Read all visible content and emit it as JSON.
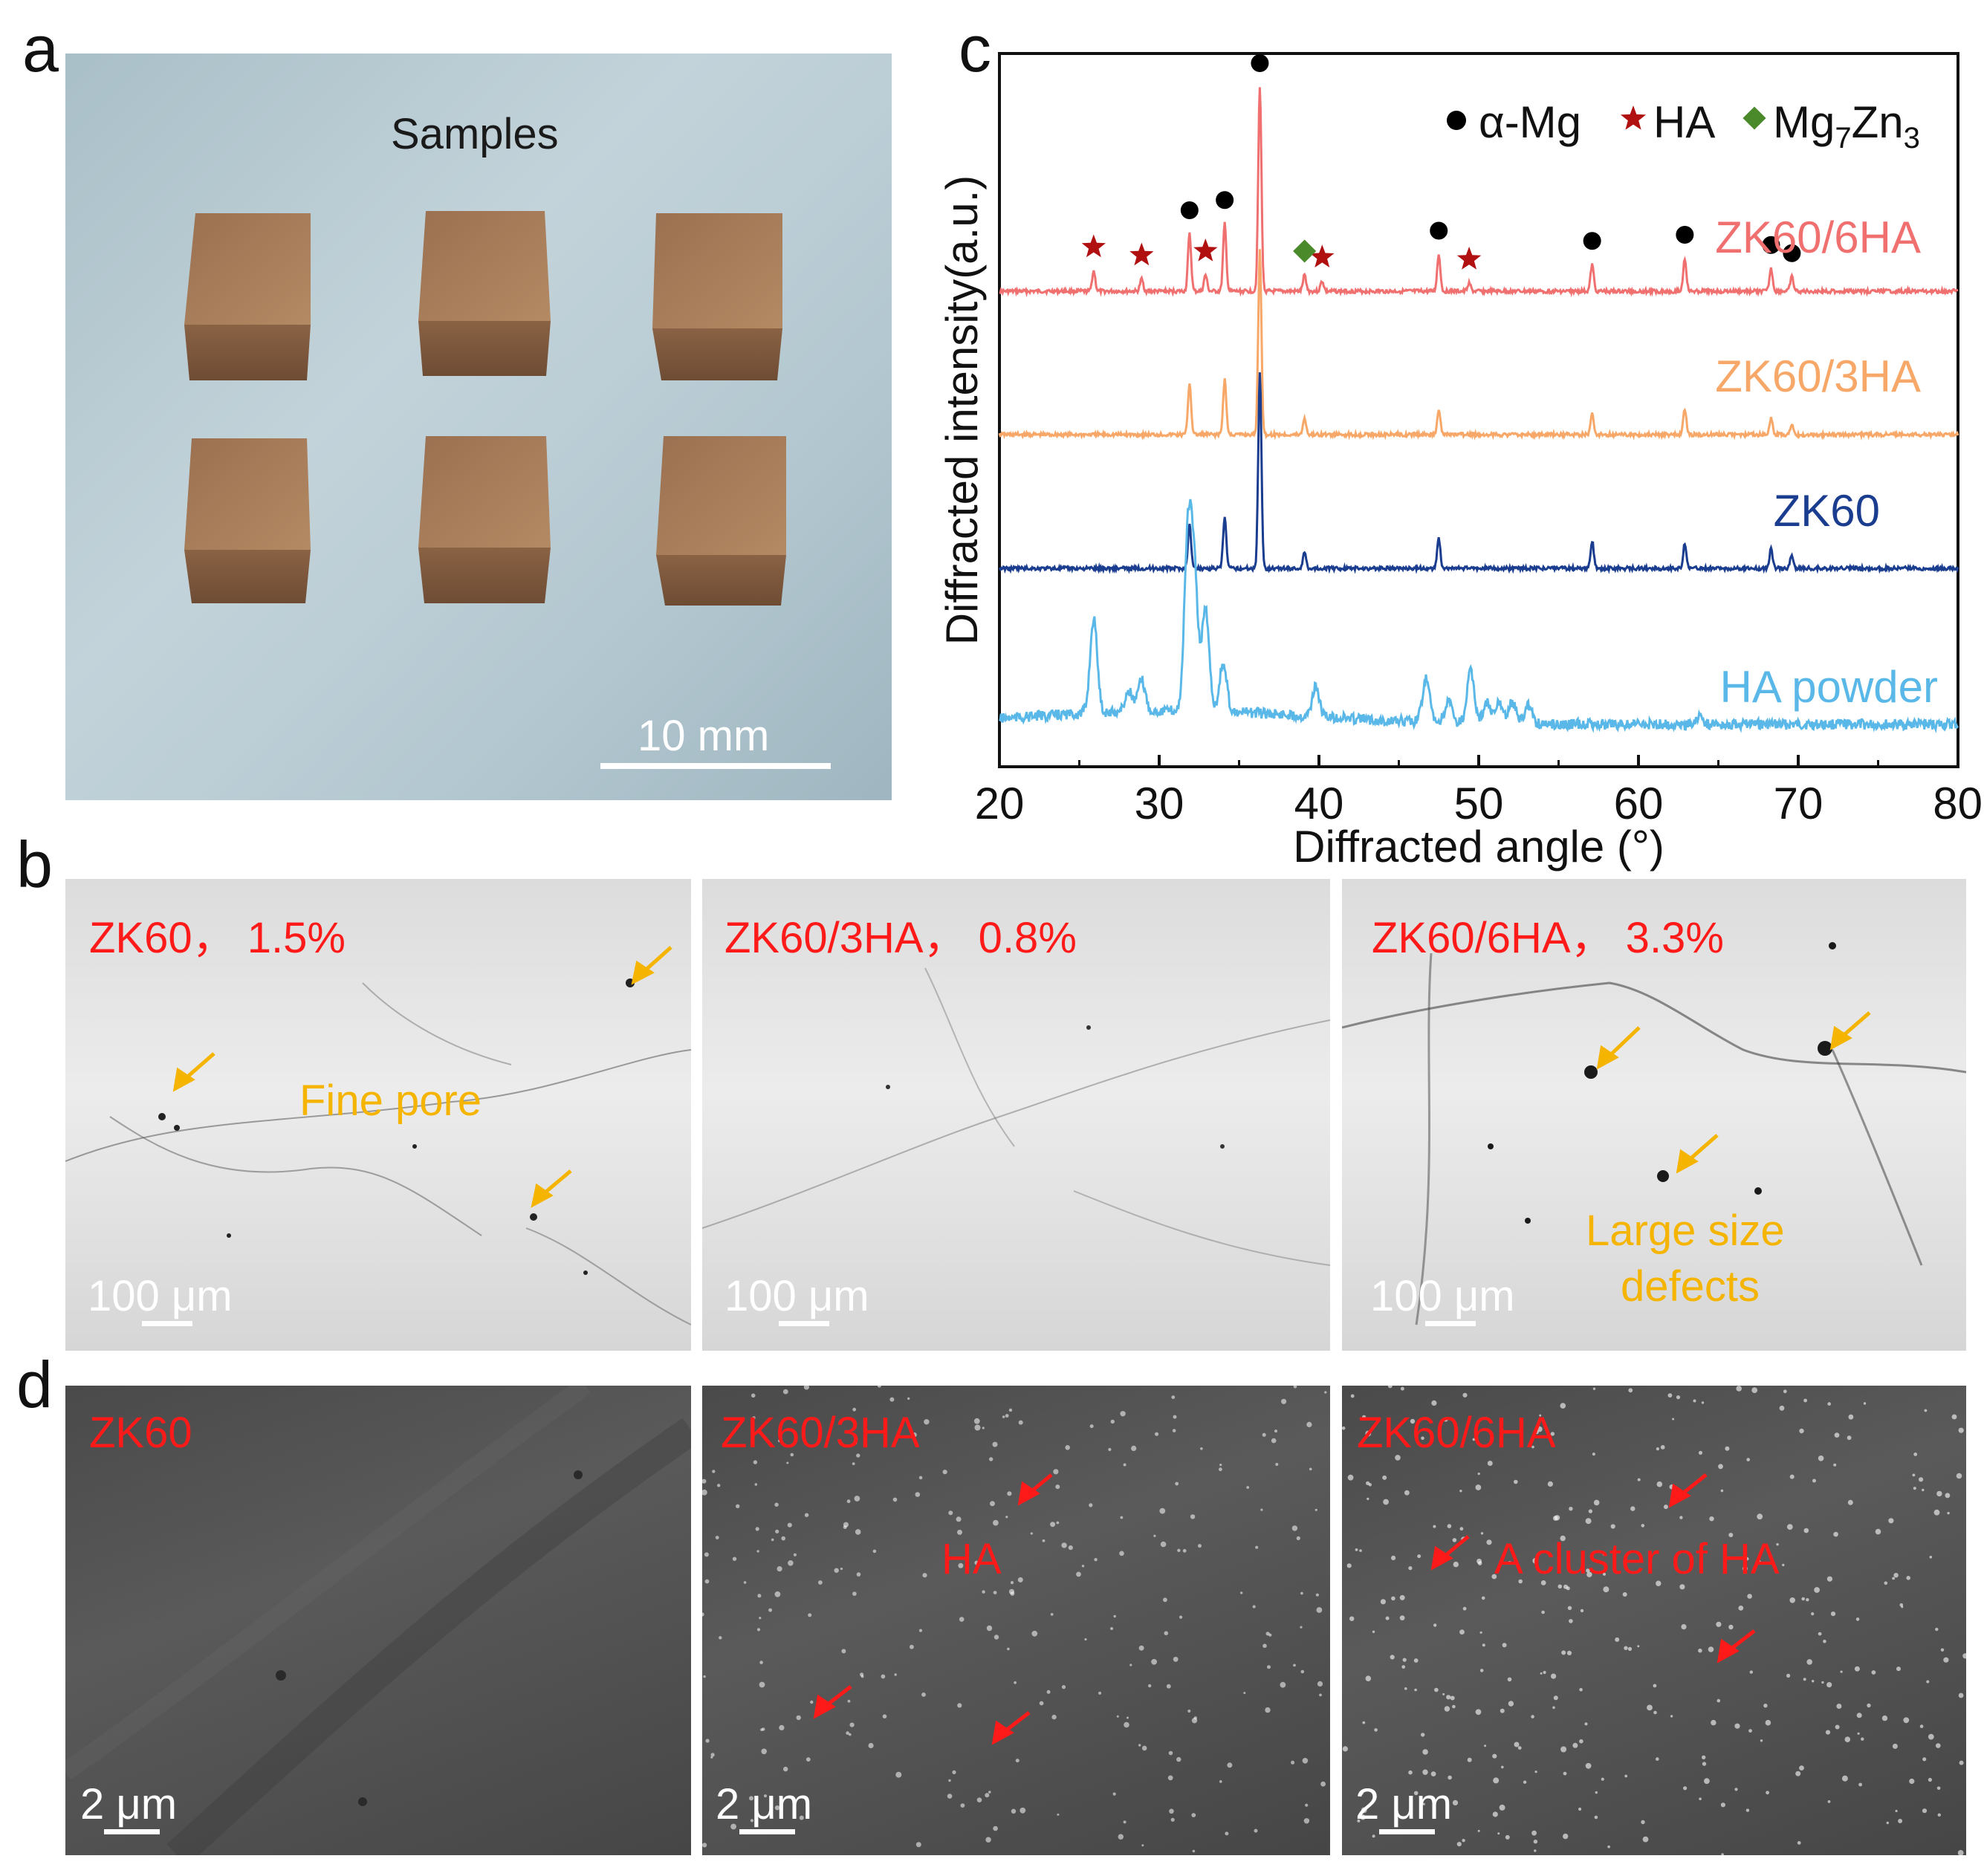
{
  "panel_labels": {
    "a": "a",
    "b": "b",
    "c": "c",
    "d": "d"
  },
  "panel_a": {
    "title": "Samples",
    "scale_bar": "10 mm"
  },
  "panel_b": {
    "images": [
      {
        "label": "ZK60，  1.5%",
        "scale": "100 μm",
        "annotation": "Fine pore"
      },
      {
        "label": "ZK60/3HA，  0.8%",
        "scale": "100 μm"
      },
      {
        "label": "ZK60/6HA，  3.3%",
        "scale": "100 μm",
        "annotation_line1": "Large size",
        "annotation_line2": "defects"
      }
    ]
  },
  "panel_d": {
    "images": [
      {
        "label": "ZK60",
        "scale": "2 μm"
      },
      {
        "label": "ZK60/3HA",
        "scale": "2 μm",
        "annotation": "HA"
      },
      {
        "label": "ZK60/6HA",
        "scale": "2 μm",
        "annotation": "A cluster of HA"
      }
    ]
  },
  "chart_data": {
    "type": "line",
    "xlabel": "Diffracted angle (°)",
    "ylabel": "Diffracted intensity(a.u.)",
    "xlim": [
      20,
      80
    ],
    "xticks": [
      "20",
      "30",
      "40",
      "50",
      "60",
      "70",
      "80"
    ],
    "legend": [
      {
        "symbol": "circle",
        "label": "α-Mg",
        "color": "#000000"
      },
      {
        "symbol": "star",
        "label": "HA",
        "color": "#b01010"
      },
      {
        "symbol": "diamond",
        "label": "Mg7Zn3",
        "color": "#4a8a2a"
      }
    ],
    "series": [
      {
        "name": "ZK60/6HA",
        "color": "#f07070",
        "peaks": [
          [
            25.9,
            0.1
          ],
          [
            28.9,
            0.06
          ],
          [
            31.9,
            0.28
          ],
          [
            32.9,
            0.08
          ],
          [
            34.1,
            0.33
          ],
          [
            36.3,
            1.0
          ],
          [
            39.1,
            0.08
          ],
          [
            40.2,
            0.05
          ],
          [
            47.5,
            0.18
          ],
          [
            49.4,
            0.04
          ],
          [
            57.1,
            0.13
          ],
          [
            62.9,
            0.16
          ],
          [
            68.3,
            0.11
          ],
          [
            69.6,
            0.07
          ]
        ]
      },
      {
        "name": "ZK60/3HA",
        "color": "#f7a868",
        "peaks": [
          [
            31.9,
            0.28
          ],
          [
            34.1,
            0.3
          ],
          [
            36.3,
            1.0
          ],
          [
            39.1,
            0.09
          ],
          [
            47.5,
            0.14
          ],
          [
            57.1,
            0.11
          ],
          [
            62.9,
            0.14
          ],
          [
            68.3,
            0.09
          ],
          [
            69.6,
            0.06
          ]
        ]
      },
      {
        "name": "ZK60",
        "color": "#1a3d8f",
        "peaks": [
          [
            31.9,
            0.22
          ],
          [
            34.1,
            0.26
          ],
          [
            36.3,
            1.0
          ],
          [
            39.1,
            0.08
          ],
          [
            47.5,
            0.15
          ],
          [
            57.1,
            0.14
          ],
          [
            62.9,
            0.13
          ],
          [
            68.3,
            0.1
          ],
          [
            69.6,
            0.07
          ]
        ]
      },
      {
        "name": "HA powder",
        "color": "#5ab8e8",
        "peaks": [
          [
            25.9,
            0.55
          ],
          [
            28.1,
            0.12
          ],
          [
            28.9,
            0.18
          ],
          [
            31.8,
            1.0
          ],
          [
            32.2,
            0.75
          ],
          [
            32.9,
            0.6
          ],
          [
            34.0,
            0.28
          ],
          [
            39.8,
            0.17
          ],
          [
            46.7,
            0.25
          ],
          [
            48.1,
            0.12
          ],
          [
            49.5,
            0.3
          ],
          [
            50.5,
            0.12
          ],
          [
            51.3,
            0.12
          ],
          [
            52.1,
            0.13
          ],
          [
            53.1,
            0.11
          ],
          [
            63.8,
            0.05
          ]
        ]
      }
    ],
    "markers": [
      {
        "series": "ZK60/6HA",
        "x": 36.3,
        "symbol": "circle"
      },
      {
        "series": "ZK60/6HA",
        "x": 31.9,
        "symbol": "circle"
      },
      {
        "series": "ZK60/6HA",
        "x": 34.1,
        "symbol": "circle"
      },
      {
        "series": "ZK60/6HA",
        "x": 47.5,
        "symbol": "circle"
      },
      {
        "series": "ZK60/6HA",
        "x": 57.1,
        "symbol": "circle"
      },
      {
        "series": "ZK60/6HA",
        "x": 62.9,
        "symbol": "circle"
      },
      {
        "series": "ZK60/6HA",
        "x": 68.3,
        "symbol": "circle"
      },
      {
        "series": "ZK60/6HA",
        "x": 69.6,
        "symbol": "circle"
      },
      {
        "series": "ZK60/6HA",
        "x": 25.9,
        "symbol": "star"
      },
      {
        "series": "ZK60/6HA",
        "x": 28.9,
        "symbol": "star"
      },
      {
        "series": "ZK60/6HA",
        "x": 32.9,
        "symbol": "star"
      },
      {
        "series": "ZK60/6HA",
        "x": 40.2,
        "symbol": "star"
      },
      {
        "series": "ZK60/6HA",
        "x": 49.4,
        "symbol": "star"
      },
      {
        "series": "ZK60/6HA",
        "x": 39.1,
        "symbol": "diamond"
      }
    ]
  }
}
